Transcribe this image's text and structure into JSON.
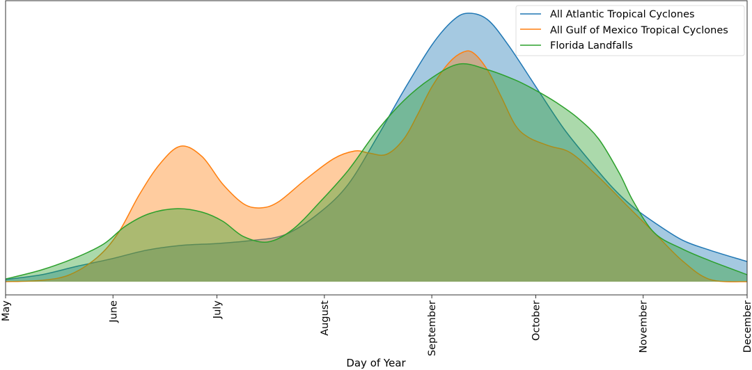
{
  "chart_data": {
    "type": "area",
    "title": "",
    "xlabel": "Day of Year",
    "ylabel": "",
    "xlim": [
      121,
      335
    ],
    "ylim": [
      0,
      1.1
    ],
    "y_scale_note_visible": false,
    "grid": false,
    "legend_placement": "top-right",
    "x_ticks": [
      {
        "value": 121,
        "label": "May"
      },
      {
        "value": 152,
        "label": "June"
      },
      {
        "value": 182,
        "label": "July"
      },
      {
        "value": 213,
        "label": "August"
      },
      {
        "value": 244,
        "label": "September"
      },
      {
        "value": 274,
        "label": "October"
      },
      {
        "value": 305,
        "label": "November"
      },
      {
        "value": 335,
        "label": "December"
      }
    ],
    "series": [
      {
        "name": "All Atlantic Tropical Cyclones",
        "color": "#1f77b4",
        "x": [
          121,
          131.4,
          141.5,
          151.5,
          161.6,
          171.6,
          181.7,
          191.7,
          201.8,
          211.8,
          219.9,
          227.9,
          235.9,
          244.0,
          250.0,
          254.4,
          260.0,
          266.1,
          274.1,
          282.1,
          290.2,
          296.2,
          302.2,
          308.3,
          316.3,
          324.3,
          335
        ],
        "y": [
          0.008,
          0.026,
          0.057,
          0.085,
          0.117,
          0.135,
          0.142,
          0.153,
          0.176,
          0.259,
          0.363,
          0.531,
          0.712,
          0.881,
          0.972,
          1.0,
          0.977,
          0.881,
          0.725,
          0.57,
          0.44,
          0.35,
          0.277,
          0.22,
          0.155,
          0.117,
          0.075
        ]
      },
      {
        "name": "All Gulf of Mexico Tropical Cyclones",
        "color": "#ff7f0e",
        "x": [
          121,
          131.4,
          139.5,
          147.5,
          153.5,
          159.6,
          165.6,
          171.6,
          177.7,
          183.7,
          189.7,
          194.7,
          199.8,
          207.8,
          215.8,
          221.9,
          225.9,
          230.9,
          235.9,
          239.9,
          244.0,
          249.0,
          253.0,
          256.0,
          260.0,
          264.1,
          268.1,
          272.1,
          278.1,
          284.2,
          292.2,
          300.2,
          308.3,
          316.3,
          324.3,
          335
        ],
        "y": [
          0,
          0.005,
          0.026,
          0.091,
          0.181,
          0.324,
          0.44,
          0.505,
          0.466,
          0.363,
          0.29,
          0.275,
          0.298,
          0.383,
          0.459,
          0.487,
          0.479,
          0.474,
          0.531,
          0.622,
          0.725,
          0.816,
          0.855,
          0.852,
          0.79,
          0.687,
          0.583,
          0.536,
          0.505,
          0.479,
          0.389,
          0.285,
          0.181,
          0.078,
          0.008,
          0
        ]
      },
      {
        "name": "Florida Landfalls",
        "color": "#2ca02c",
        "x": [
          121,
          131.4,
          141.5,
          149.5,
          155.6,
          162.6,
          170.6,
          177.7,
          183.7,
          189.7,
          196.7,
          203.8,
          211.8,
          219.9,
          227.9,
          235.9,
          244.0,
          252.0,
          260.0,
          268.1,
          274.1,
          280.1,
          286.2,
          292.2,
          298.2,
          302.2,
          308.3,
          316.3,
          324.3,
          335
        ],
        "y": [
          0.01,
          0.044,
          0.091,
          0.142,
          0.207,
          0.254,
          0.272,
          0.259,
          0.225,
          0.168,
          0.148,
          0.194,
          0.298,
          0.415,
          0.557,
          0.674,
          0.759,
          0.811,
          0.79,
          0.751,
          0.712,
          0.666,
          0.609,
          0.531,
          0.402,
          0.298,
          0.181,
          0.122,
          0.078,
          0.026
        ]
      }
    ]
  }
}
